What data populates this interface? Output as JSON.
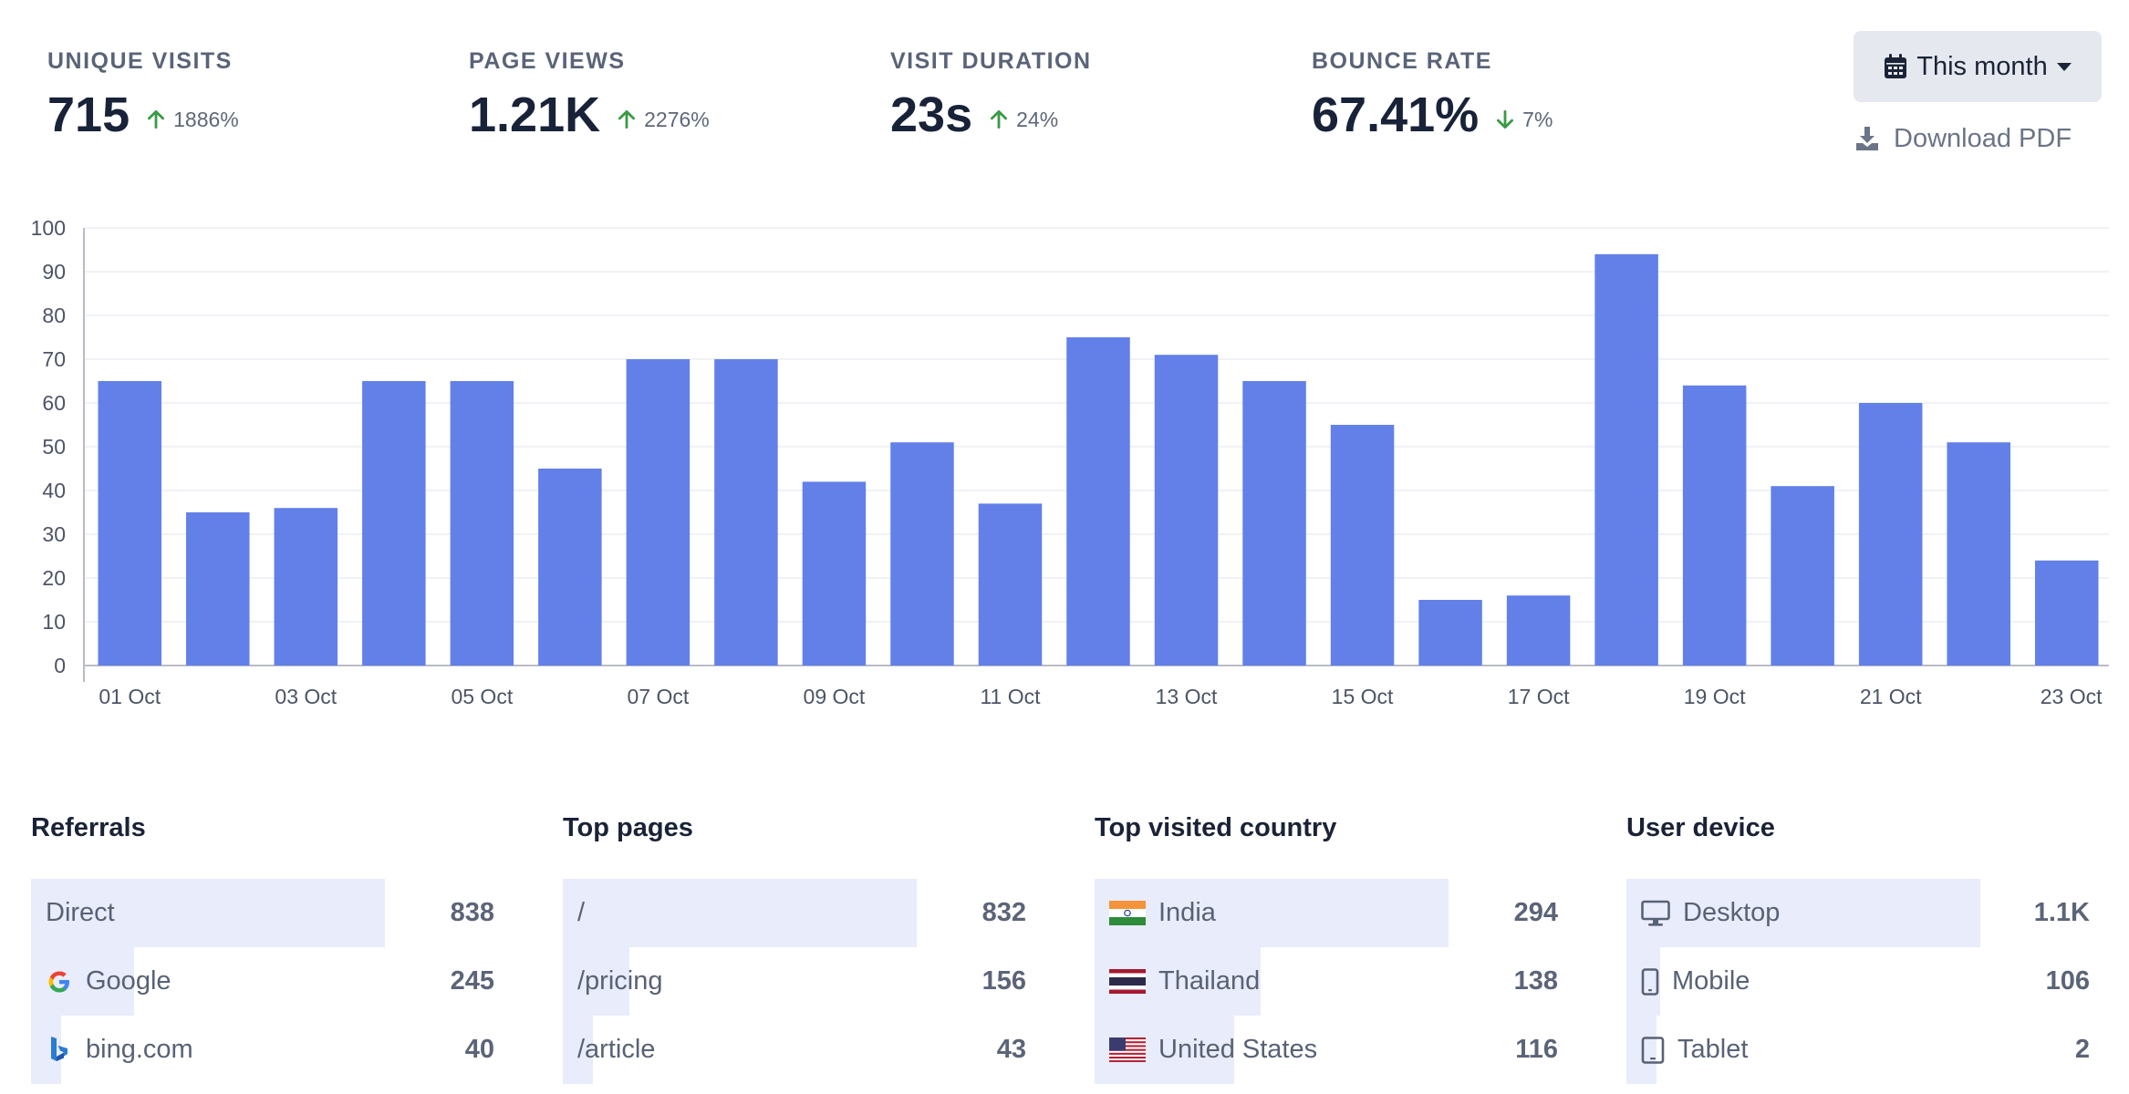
{
  "stats": [
    {
      "label": "UNIQUE VISITS",
      "value": "715",
      "change": "1886%",
      "direction": "up"
    },
    {
      "label": "PAGE VIEWS",
      "value": "1.21K",
      "change": "2276%",
      "direction": "up"
    },
    {
      "label": "VISIT DURATION",
      "value": "23s",
      "change": "24%",
      "direction": "up"
    },
    {
      "label": "BOUNCE RATE",
      "value": "67.41%",
      "change": "7%",
      "direction": "down"
    }
  ],
  "controls": {
    "period_label": "This month",
    "download_label": "Download PDF"
  },
  "colors": {
    "bar": "#6280e8",
    "up": "#3a9a45",
    "down": "#3a9a45",
    "row_fill": "#e9ecfb"
  },
  "chart_data": {
    "type": "bar",
    "categories": [
      "01 Oct",
      "02 Oct",
      "03 Oct",
      "04 Oct",
      "05 Oct",
      "06 Oct",
      "07 Oct",
      "08 Oct",
      "09 Oct",
      "10 Oct",
      "11 Oct",
      "12 Oct",
      "13 Oct",
      "14 Oct",
      "15 Oct",
      "16 Oct",
      "17 Oct",
      "18 Oct",
      "19 Oct",
      "20 Oct",
      "21 Oct",
      "22 Oct",
      "23 Oct"
    ],
    "values": [
      65,
      35,
      36,
      65,
      65,
      45,
      70,
      70,
      42,
      51,
      37,
      75,
      71,
      65,
      55,
      15,
      16,
      94,
      64,
      41,
      60,
      51,
      24
    ],
    "x_tick_labels": [
      "01 Oct",
      "03 Oct",
      "05 Oct",
      "07 Oct",
      "09 Oct",
      "11 Oct",
      "13 Oct",
      "15 Oct",
      "17 Oct",
      "19 Oct",
      "21 Oct",
      "23 Oct"
    ],
    "y_ticks": [
      0,
      10,
      20,
      30,
      40,
      50,
      60,
      70,
      80,
      90,
      100
    ],
    "ylim": [
      0,
      100
    ],
    "grid": true,
    "title": "",
    "xlabel": "",
    "ylabel": ""
  },
  "panels": [
    {
      "title": "Referrals",
      "max": 838,
      "rows": [
        {
          "label": "Direct",
          "value": "838",
          "count": 838,
          "icon": ""
        },
        {
          "label": "Google",
          "value": "245",
          "count": 245,
          "icon": "google-icon"
        },
        {
          "label": "bing.com",
          "value": "40",
          "count": 40,
          "icon": "bing-icon"
        }
      ]
    },
    {
      "title": "Top pages",
      "max": 832,
      "rows": [
        {
          "label": "/",
          "value": "832",
          "count": 832,
          "icon": ""
        },
        {
          "label": "/pricing",
          "value": "156",
          "count": 156,
          "icon": ""
        },
        {
          "label": "/article",
          "value": "43",
          "count": 43,
          "icon": ""
        }
      ]
    },
    {
      "title": "Top visited country",
      "max": 294,
      "rows": [
        {
          "label": "India",
          "value": "294",
          "count": 294,
          "icon": "india-flag-icon"
        },
        {
          "label": "Thailand",
          "value": "138",
          "count": 138,
          "icon": "thailand-flag-icon"
        },
        {
          "label": "United States",
          "value": "116",
          "count": 116,
          "icon": "us-flag-icon"
        }
      ]
    },
    {
      "title": "User device",
      "max": 1100,
      "rows": [
        {
          "label": "Desktop",
          "value": "1.1K",
          "count": 1100,
          "icon": "desktop-icon"
        },
        {
          "label": "Mobile",
          "value": "106",
          "count": 106,
          "icon": "mobile-icon"
        },
        {
          "label": "Tablet",
          "value": "2",
          "count": 2,
          "icon": "tablet-icon"
        }
      ]
    }
  ]
}
